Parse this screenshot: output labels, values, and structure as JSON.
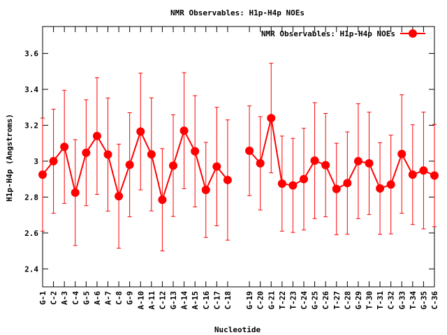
{
  "chart_data": {
    "type": "line",
    "title": "NMR Observables: H1p-H4p NOEs",
    "xlabel": "Nucleotide",
    "ylabel": "H1p-H4p (Angstroms)",
    "ylim": [
      2.3,
      3.75
    ],
    "yticks": [
      2.4,
      2.6,
      2.8,
      3,
      3.2,
      3.4,
      3.6
    ],
    "ytick_labels": [
      "2.4",
      "2.6",
      "2.8",
      "3",
      "3.2",
      "3.4",
      "3.6"
    ],
    "legend_position": "top-right",
    "grid": false,
    "color": "#ff0000",
    "categories": [
      "G-1",
      "C-2",
      "A-3",
      "C-4",
      "G-5",
      "A-6",
      "A-7",
      "C-8",
      "G-9",
      "A-10",
      "A-11",
      "C-12",
      "G-13",
      "A-14",
      "A-15",
      "C-16",
      "C-17",
      "C-18",
      "G-19",
      "C-20",
      "G-21",
      "T-22",
      "T-23",
      "C-24",
      "G-25",
      "C-26",
      "T-27",
      "C-28",
      "G-29",
      "T-30",
      "T-31",
      "C-32",
      "G-33",
      "T-34",
      "G-35",
      "C-36"
    ],
    "series": [
      {
        "name": "NMR Observables: H1p-H4p NOEs",
        "values": [
          2.925,
          3.0,
          3.08,
          2.825,
          3.047,
          3.14,
          3.037,
          2.805,
          2.98,
          3.165,
          3.038,
          2.785,
          2.975,
          3.17,
          3.055,
          2.84,
          2.97,
          2.895,
          3.058,
          2.988,
          3.24,
          2.875,
          2.865,
          2.9,
          3.003,
          2.978,
          2.845,
          2.878,
          3.0,
          2.988,
          2.848,
          2.87,
          3.04,
          2.925,
          2.948,
          2.92
        ],
        "errors": [
          0.315,
          0.29,
          0.315,
          0.295,
          0.295,
          0.325,
          0.315,
          0.29,
          0.29,
          0.325,
          0.315,
          0.285,
          0.283,
          0.323,
          0.31,
          0.265,
          0.33,
          0.335,
          0.25,
          0.26,
          0.305,
          0.265,
          0.262,
          0.283,
          0.323,
          0.288,
          0.255,
          0.285,
          0.32,
          0.285,
          0.255,
          0.275,
          0.33,
          0.278,
          0.325,
          0.285
        ]
      }
    ]
  }
}
